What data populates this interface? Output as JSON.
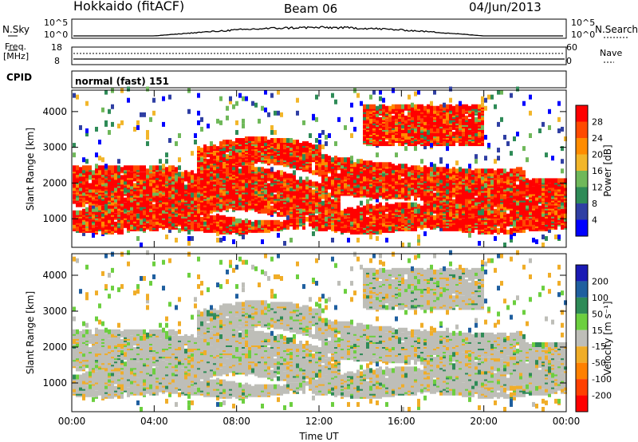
{
  "header": {
    "station": "Hokkaido (fitACF)",
    "beam": "Beam 06",
    "date": "04/Jun/2013"
  },
  "top_panels": {
    "nsky_label": "N.Sky",
    "nsky_ticks": [
      "10^5",
      "10^0"
    ],
    "nsearch_label": "N.Search",
    "nsearch_ticks": [
      "10^5",
      "10^0"
    ],
    "freq_label_1": "Freq.",
    "freq_label_2": "[MHz]",
    "freq_ticks": [
      "18",
      "8"
    ],
    "nave_label": "Nave",
    "nave_ticks": [
      "60",
      "0"
    ],
    "cpid_label": "CPID",
    "cpid_value": "normal (fast) 151"
  },
  "colors": {
    "power_scale": [
      "#0000ff",
      "#2f3fa3",
      "#2e8b57",
      "#6fb85a",
      "#f2b62a",
      "#ff8c00",
      "#ff4a00",
      "#ff0000"
    ],
    "velocity_scale": [
      "#1a1ab4",
      "#1f5f9f",
      "#2e8b57",
      "#6ccf3f",
      "#bebeb8",
      "#f0ad28",
      "#ff8000",
      "#ff4000",
      "#ff0000"
    ]
  },
  "chart_data": [
    {
      "type": "heatmap",
      "name": "power",
      "x_ticks": [
        "00:00",
        "04:00",
        "08:00",
        "12:00",
        "16:00",
        "20:00",
        "00:00"
      ],
      "xlim_hours": [
        0,
        24
      ],
      "ylabel": "Slant Range [km]",
      "y_ticks": [
        1000,
        2000,
        3000,
        4000
      ],
      "ylim": [
        200,
        4600
      ],
      "colorbar_label": "Power [dB]",
      "colorbar_ticks": [
        "4",
        "8",
        "12",
        "16",
        "20",
        "24",
        "28"
      ],
      "colorbar_range": [
        0,
        32
      ]
    },
    {
      "type": "heatmap",
      "name": "velocity",
      "x_ticks": [
        "00:00",
        "04:00",
        "08:00",
        "12:00",
        "16:00",
        "20:00",
        "00:00"
      ],
      "xlim_hours": [
        0,
        24
      ],
      "xlabel": "Time UT",
      "ylabel": "Slant Range [km]",
      "y_ticks": [
        1000,
        2000,
        3000,
        4000
      ],
      "ylim": [
        200,
        4600
      ],
      "colorbar_label": "Velocity [m s⁻¹]",
      "colorbar_ticks": [
        "200",
        "100",
        "50",
        "15",
        "-15",
        "-50",
        "-100",
        "-200"
      ]
    }
  ]
}
